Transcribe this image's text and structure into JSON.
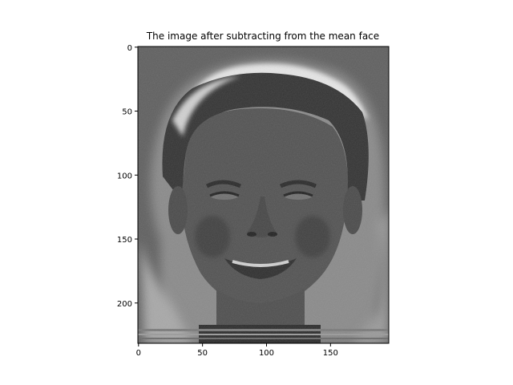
{
  "figure": {
    "title": "The image after subtracting from the mean face"
  },
  "chart_data": {
    "type": "heatmap",
    "title": "The image after subtracting from the mean face",
    "colormap": "gray",
    "xlim": [
      -0.5,
      195.5
    ],
    "ylim": [
      231.5,
      -0.5
    ],
    "x_ticks": [
      0,
      50,
      100,
      150
    ],
    "y_ticks": [
      0,
      50,
      100,
      150,
      200
    ],
    "grid": false,
    "legend": "none"
  },
  "image": {
    "content": "grayscale face difference image (subject minus mean face)",
    "background_gray": "#5f5f5f",
    "highlight_gray": "#e6e6e6",
    "shadow_gray": "#2a2a2a"
  }
}
